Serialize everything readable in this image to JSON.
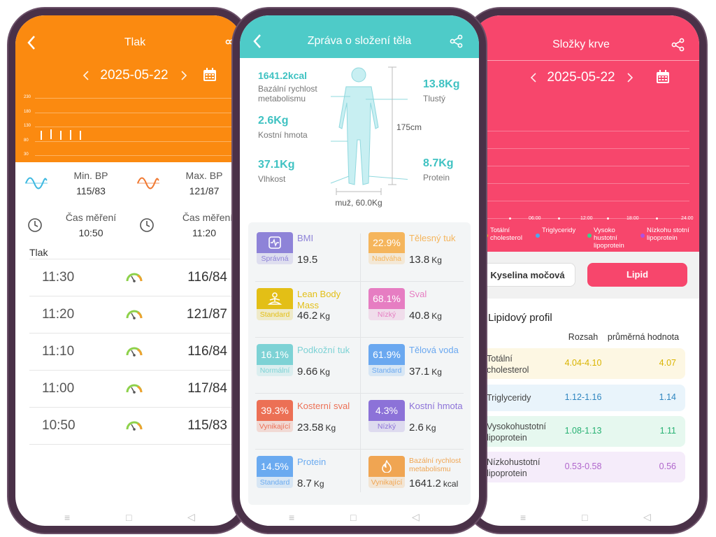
{
  "blood_pressure": {
    "title": "Tlak",
    "date": "2025-05-22",
    "chart": {
      "ylim": [
        30,
        230
      ],
      "yticks": [
        30,
        80,
        130,
        180,
        230
      ]
    },
    "min_label": "Min. BP",
    "min_value": "115/83",
    "max_label": "Max. BP",
    "max_value": "121/87",
    "time_label": "Čas měření",
    "min_time": "10:50",
    "max_time": "11:20",
    "section": "Tlak",
    "readings": [
      {
        "time": "11:30",
        "sys": 116,
        "dia": 84,
        "label": "116/84"
      },
      {
        "time": "11:20",
        "sys": 121,
        "dia": 87,
        "label": "121/87"
      },
      {
        "time": "11:10",
        "sys": 116,
        "dia": 84,
        "label": "116/84"
      },
      {
        "time": "11:00",
        "sys": 117,
        "dia": 84,
        "label": "117/84"
      },
      {
        "time": "10:50",
        "sys": 115,
        "dia": 83,
        "label": "115/83"
      }
    ]
  },
  "body_composition": {
    "title": "Zpráva o složení těla",
    "bmr_value": "1641.2kcal",
    "bmr_label": "Bazální rychlost metabolismu",
    "fat_value": "13.8Kg",
    "fat_label": "Tlustý",
    "bone_value": "2.6Kg",
    "bone_label": "Kostní hmota",
    "height": "175cm",
    "water_value": "37.1Kg",
    "water_label": "Vlhkost",
    "protein_value": "8.7Kg",
    "protein_label": "Protein",
    "profile": "muž, 60.0Kg",
    "cards": [
      {
        "name": "BMI",
        "status": "Správná",
        "value": "19.5",
        "color": "#8e83d8"
      },
      {
        "badge": "22.9%",
        "name": "Tělesný tuk",
        "status": "Nadváha",
        "value": "13.8",
        "unit": "Kg",
        "color": "#f5b55c"
      },
      {
        "name": "Lean Body Mass",
        "status": "Standard",
        "value": "46.2",
        "unit": "Kg",
        "color": "#e3bf16"
      },
      {
        "badge": "68.1%",
        "name": "Sval",
        "status": "Nízký",
        "value": "40.8",
        "unit": "Kg",
        "color": "#e67dc2"
      },
      {
        "badge": "16.1%",
        "name": "Podkožní tuk",
        "status": "Normální",
        "value": "9.66",
        "unit": "Kg",
        "color": "#7dd2d5"
      },
      {
        "badge": "61.9%",
        "name": "Tělová voda",
        "status": "Standard",
        "value": "37.1",
        "unit": "Kg",
        "color": "#6aa8f0"
      },
      {
        "badge": "39.3%",
        "name": "Kosterní sval",
        "status": "Vynikající",
        "value": "23.58",
        "unit": "Kg",
        "color": "#ec7055"
      },
      {
        "badge": "4.3%",
        "name": "Kostní hmota",
        "status": "Nízký",
        "value": "2.6",
        "unit": "Kg",
        "color": "#8c72d8"
      },
      {
        "badge": "14.5%",
        "name": "Protein",
        "status": "Standard",
        "value": "8.7",
        "unit": "Kg",
        "color": "#6aaaf0"
      },
      {
        "name": "Bazální rychlost metabolismu",
        "status": "Vynikající",
        "value": "1641.2",
        "unit": "kcal",
        "color": "#f0a552"
      }
    ]
  },
  "blood": {
    "title": "Složky krve",
    "date": "2025-05-22",
    "x_labels": [
      "0",
      "06:00",
      "12:00",
      "18:00",
      "24:00"
    ],
    "legend": [
      {
        "name": "Totální cholesterol",
        "color": "#f5d020"
      },
      {
        "name": "Triglyceridy",
        "color": "#4aa8f0"
      },
      {
        "name": "Vysoko hustotní lipoprotein",
        "color": "#3ccf8a"
      },
      {
        "name": "Nízkohu stotní lipoprotein",
        "color": "#b050e0"
      }
    ],
    "buttons": [
      "Kyselina močová",
      "Lipid"
    ],
    "profile_title": "Lipidový profil",
    "headers": [
      "Rozsah",
      "průměrná hodnota"
    ],
    "rows": [
      {
        "name": "Totální cholesterol",
        "range": "4.04-4.10",
        "value": "4.07",
        "color": "#d9b400",
        "bg": "#fdf7e3"
      },
      {
        "name": "Triglyceridy",
        "range": "1.12-1.16",
        "value": "1.14",
        "color": "#2f86c0",
        "bg": "#e9f4fb"
      },
      {
        "name": "Vysokohustotní lipoprotein",
        "range": "1.08-1.13",
        "value": "1.11",
        "color": "#26b172",
        "bg": "#e6f8ef"
      },
      {
        "name": "Nízkohustotní lipoprotein",
        "range": "0.53-0.58",
        "value": "0.56",
        "color": "#b066cc",
        "bg": "#f5ecfa"
      }
    ]
  }
}
